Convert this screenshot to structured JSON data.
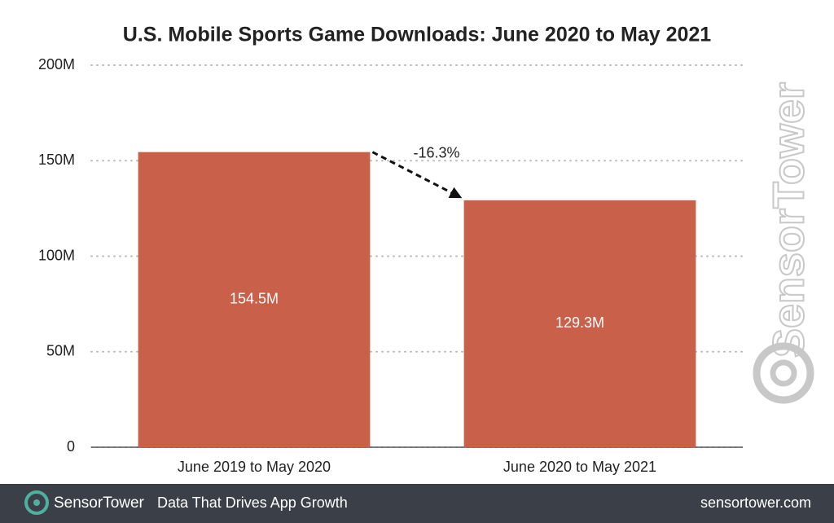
{
  "chart_data": {
    "type": "bar",
    "title": "U.S. Mobile Sports Game Downloads: June 2020 to May 2021",
    "categories": [
      "June 2019 to May 2020",
      "June 2020 to May 2021"
    ],
    "values": [
      154.5,
      129.3
    ],
    "value_labels": [
      "154.5M",
      "129.3M"
    ],
    "color": "#c9604a",
    "ylim": [
      0,
      200
    ],
    "yticks": [
      0,
      {
        "value": 50,
        "label": "50M"
      },
      {
        "value": 100,
        "label": "100M"
      },
      {
        "value": 150,
        "label": "150M"
      },
      {
        "value": 200,
        "label": "200M"
      }
    ],
    "grid": true,
    "annotation": "-16.3%",
    "watermark": "SensorTower",
    "footer": {
      "brand": "SensorTower",
      "tagline": "Data That Drives App Growth",
      "url": "sensortower.com"
    }
  }
}
